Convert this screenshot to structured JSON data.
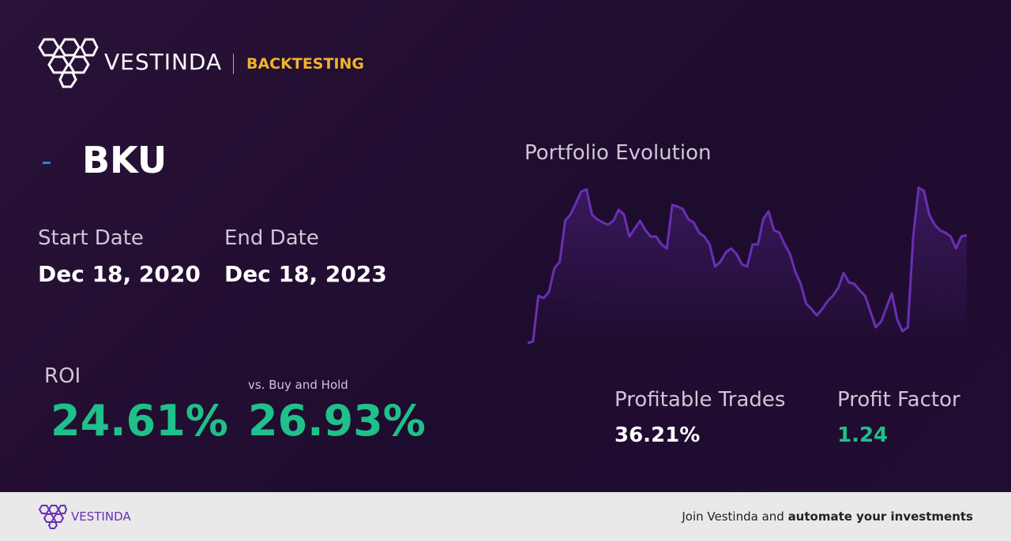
{
  "header": {
    "brand": "VESTINDA",
    "section": "BACKTESTING"
  },
  "ticker": "BKU",
  "start_date": {
    "label": "Start Date",
    "value": "Dec 18, 2020"
  },
  "end_date": {
    "label": "End Date",
    "value": "Dec 18, 2023"
  },
  "roi": {
    "label": "ROI",
    "value": "24.61%"
  },
  "buy_and_hold": {
    "label": "vs. Buy and Hold",
    "value": "26.93%"
  },
  "profitable_trades": {
    "label": "Profitable Trades",
    "value": "36.21%"
  },
  "profit_factor": {
    "label": "Profit Factor",
    "value": "1.24"
  },
  "chart_data": {
    "type": "line",
    "title": "Portfolio Evolution",
    "color": "#6a2fb3",
    "ylim": [
      20,
      220
    ],
    "values": [
      15,
      17,
      75,
      72,
      80,
      110,
      118,
      170,
      178,
      192,
      207,
      210,
      178,
      172,
      168,
      165,
      170,
      184,
      178,
      150,
      160,
      170,
      158,
      150,
      150,
      140,
      135,
      190,
      188,
      185,
      172,
      168,
      155,
      150,
      140,
      112,
      118,
      130,
      135,
      128,
      115,
      112,
      140,
      140,
      172,
      182,
      158,
      155,
      140,
      128,
      105,
      90,
      65,
      58,
      50,
      58,
      68,
      75,
      85,
      104,
      92,
      90,
      82,
      75,
      55,
      35,
      42,
      60,
      78,
      45,
      30,
      35,
      150,
      212,
      208,
      178,
      165,
      158,
      155,
      150,
      135,
      150,
      152
    ]
  },
  "footer": {
    "brand": "VESTINDA",
    "text": "Join Vestinda and ",
    "bold": "automate your investments"
  }
}
